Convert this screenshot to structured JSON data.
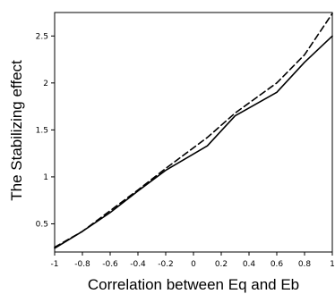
{
  "chart_data": {
    "type": "line",
    "title": "",
    "xlabel": "Correlation between Eq and Eb",
    "ylabel": "The Stabilizing effect",
    "xlim": [
      -1,
      1
    ],
    "ylim": [
      0.2,
      2.75
    ],
    "xticks": [
      -1,
      -0.8,
      -0.6,
      -0.4,
      -0.2,
      0,
      0.2,
      0.4,
      0.6,
      0.8,
      1
    ],
    "xtick_labels": [
      "-1",
      "-0.8",
      "-0.6",
      "-0.4",
      "-0.2",
      "0",
      "0.2",
      "0.4",
      "0.6",
      "0.8",
      "1"
    ],
    "yticks": [
      0.5,
      1,
      1.5,
      2,
      2.5
    ],
    "ytick_labels": [
      "0.5",
      "1",
      "1.5",
      "2",
      "2.5"
    ],
    "grid": false,
    "legend": false,
    "series": [
      {
        "style": "solid",
        "color": "#000000",
        "x": [
          -1,
          -0.8,
          -0.6,
          -0.4,
          -0.2,
          0.1,
          0.3,
          0.6,
          0.8,
          1
        ],
        "y": [
          0.24,
          0.42,
          0.62,
          0.85,
          1.07,
          1.33,
          1.65,
          1.9,
          2.22,
          2.5
        ]
      },
      {
        "style": "dashed",
        "color": "#000000",
        "x": [
          -1,
          -0.8,
          -0.6,
          -0.4,
          -0.2,
          0.1,
          0.3,
          0.6,
          0.8,
          1
        ],
        "y": [
          0.25,
          0.42,
          0.64,
          0.86,
          1.09,
          1.42,
          1.68,
          2.0,
          2.3,
          2.74
        ]
      }
    ]
  }
}
